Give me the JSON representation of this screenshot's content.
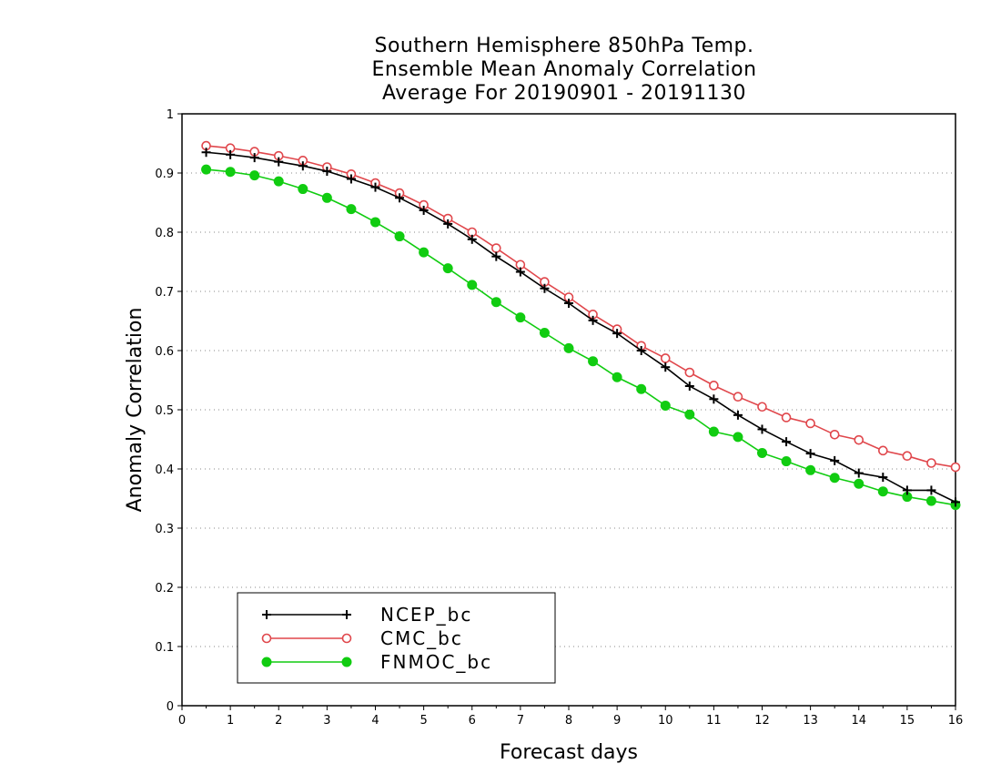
{
  "chart_data": {
    "type": "line",
    "title": [
      "Southern Hemisphere 850hPa Temp.",
      "Ensemble Mean Anomaly Correlation",
      "Average For 20190901 - 20191130"
    ],
    "xlabel": "Forecast days",
    "ylabel": "Anomaly Correlation",
    "xlim": [
      0,
      16
    ],
    "ylim": [
      0,
      1
    ],
    "x_ticks": [
      "0",
      "1",
      "2",
      "3",
      "4",
      "5",
      "6",
      "7",
      "8",
      "9",
      "10",
      "11",
      "12",
      "13",
      "14",
      "15",
      "16"
    ],
    "y_ticks": [
      "0",
      "0.1",
      "0.2",
      "0.3",
      "0.4",
      "0.5",
      "0.6",
      "0.7",
      "0.8",
      "0.9",
      "1"
    ],
    "grid": "horizontal dotted",
    "legend_position": "bottom-left",
    "x": [
      0.5,
      1,
      1.5,
      2,
      2.5,
      3,
      3.5,
      4,
      4.5,
      5,
      5.5,
      6,
      6.5,
      7,
      7.5,
      8,
      8.5,
      9,
      9.5,
      10,
      10.5,
      11,
      11.5,
      12,
      12.5,
      13,
      13.5,
      14,
      14.5,
      15,
      15.5,
      16
    ],
    "series": [
      {
        "name": "NCEP_bc",
        "color": "#000000",
        "marker": "plus",
        "values": [
          0.935,
          0.931,
          0.926,
          0.919,
          0.912,
          0.903,
          0.89,
          0.876,
          0.858,
          0.837,
          0.814,
          0.788,
          0.759,
          0.733,
          0.705,
          0.68,
          0.651,
          0.629,
          0.6,
          0.572,
          0.54,
          0.518,
          0.491,
          0.467,
          0.446,
          0.426,
          0.414,
          0.393,
          0.386,
          0.364,
          0.364,
          0.344
        ]
      },
      {
        "name": "CMC_bc",
        "color": "#e0474c",
        "marker": "open-circle",
        "values": [
          0.946,
          0.942,
          0.936,
          0.929,
          0.921,
          0.91,
          0.898,
          0.883,
          0.866,
          0.846,
          0.823,
          0.8,
          0.773,
          0.745,
          0.716,
          0.69,
          0.661,
          0.636,
          0.608,
          0.587,
          0.563,
          0.541,
          0.522,
          0.505,
          0.487,
          0.477,
          0.458,
          0.449,
          0.431,
          0.422,
          0.41,
          0.403
        ]
      },
      {
        "name": "FNMOC_bc",
        "color": "#11cc11",
        "marker": "filled-circle",
        "values": [
          0.906,
          0.902,
          0.896,
          0.886,
          0.873,
          0.858,
          0.839,
          0.817,
          0.793,
          0.766,
          0.739,
          0.711,
          0.682,
          0.656,
          0.63,
          0.604,
          0.582,
          0.555,
          0.535,
          0.507,
          0.492,
          0.463,
          0.454,
          0.427,
          0.413,
          0.398,
          0.385,
          0.375,
          0.362,
          0.353,
          0.346,
          0.339
        ]
      }
    ]
  }
}
